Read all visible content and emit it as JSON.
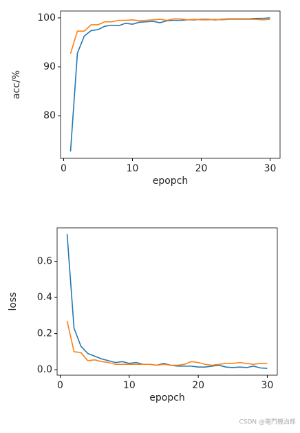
{
  "chart_data": [
    {
      "type": "line",
      "xlabel": "epopch",
      "ylabel": "acc/%",
      "x": [
        1,
        2,
        3,
        4,
        5,
        6,
        7,
        8,
        9,
        10,
        11,
        12,
        13,
        14,
        15,
        16,
        17,
        18,
        19,
        20,
        21,
        22,
        23,
        24,
        25,
        26,
        27,
        28,
        29,
        30
      ],
      "series": [
        {
          "color": "#1f77b4",
          "values": [
            72.7,
            92.8,
            96.3,
            97.4,
            97.6,
            98.3,
            98.5,
            98.4,
            98.9,
            98.7,
            99.1,
            99.2,
            99.3,
            99.0,
            99.4,
            99.5,
            99.5,
            99.6,
            99.6,
            99.7,
            99.7,
            99.6,
            99.7,
            99.8,
            99.8,
            99.8,
            99.8,
            99.9,
            99.9,
            100.0
          ]
        },
        {
          "color": "#ff7f0e",
          "values": [
            92.7,
            97.3,
            97.3,
            98.6,
            98.6,
            99.2,
            99.2,
            99.5,
            99.5,
            99.6,
            99.4,
            99.5,
            99.6,
            99.7,
            99.5,
            99.8,
            99.8,
            99.6,
            99.7,
            99.6,
            99.6,
            99.7,
            99.6,
            99.7,
            99.7,
            99.7,
            99.7,
            99.7,
            99.6,
            99.7
          ]
        }
      ],
      "xlim": [
        -0.45,
        31.45
      ],
      "ylim": [
        71.3,
        101.4
      ],
      "xticks": [
        0,
        10,
        20,
        30
      ],
      "yticks": [
        80,
        90,
        100
      ]
    },
    {
      "type": "line",
      "xlabel": "epopch",
      "ylabel": "loss",
      "x": [
        1,
        2,
        3,
        4,
        5,
        6,
        7,
        8,
        9,
        10,
        11,
        12,
        13,
        14,
        15,
        16,
        17,
        18,
        19,
        20,
        21,
        22,
        23,
        24,
        25,
        26,
        27,
        28,
        29,
        30
      ],
      "series": [
        {
          "color": "#1f77b4",
          "values": [
            0.75,
            0.23,
            0.13,
            0.09,
            0.075,
            0.06,
            0.05,
            0.04,
            0.045,
            0.035,
            0.04,
            0.03,
            0.03,
            0.025,
            0.035,
            0.025,
            0.02,
            0.02,
            0.02,
            0.015,
            0.015,
            0.02,
            0.025,
            0.015,
            0.012,
            0.015,
            0.012,
            0.02,
            0.01,
            0.008
          ]
        },
        {
          "color": "#ff7f0e",
          "values": [
            0.27,
            0.1,
            0.095,
            0.05,
            0.055,
            0.045,
            0.04,
            0.03,
            0.03,
            0.03,
            0.03,
            0.03,
            0.03,
            0.025,
            0.03,
            0.025,
            0.025,
            0.03,
            0.045,
            0.04,
            0.03,
            0.025,
            0.03,
            0.035,
            0.035,
            0.04,
            0.035,
            0.03,
            0.035,
            0.035
          ]
        }
      ],
      "xlim": [
        -0.45,
        31.45
      ],
      "ylim": [
        -0.03,
        0.785
      ],
      "xticks": [
        0,
        10,
        20,
        30
      ],
      "yticks": [
        {
          "value": 0,
          "label": "0.0"
        },
        0.2,
        0.4,
        0.6
      ]
    }
  ],
  "watermark": "CSDN @電門機治郎"
}
